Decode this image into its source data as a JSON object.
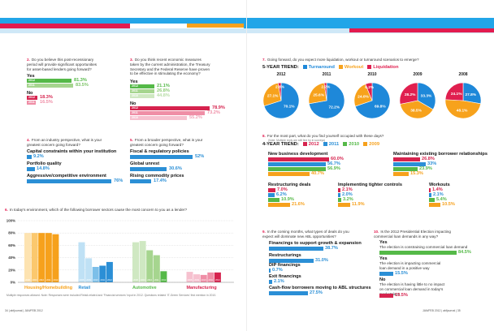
{
  "colors": {
    "green": "#55b948",
    "green_light": "#a6d58f",
    "green_pale": "#cfe8c2",
    "red": "#d6234e",
    "red_light": "#ef8ea6",
    "red_pale": "#f6c1cf",
    "blue": "#2b8fd6",
    "blue_light": "#7cbfe9",
    "blue_pale": "#bfe1f5",
    "orange": "#f6a11c",
    "orange_light": "#fbc86e",
    "orange_pale": "#fde3b1",
    "pie_blue": "#1e88d9",
    "pie_orange": "#f7a21c",
    "pie_red": "#e01f4f"
  },
  "q2": {
    "num": "2.",
    "text": "Do you believe this post-recessionary period will provide significant opportunities for asset-based lenders going forward?",
    "yes_label": "Yes",
    "no_label": "No",
    "yes": [
      {
        "year": "2012",
        "pct": "81.3%"
      },
      {
        "year": "2011",
        "pct": "83.5%"
      }
    ],
    "no": [
      {
        "year": "2012",
        "pct": "18.3%"
      },
      {
        "year": "2011",
        "pct": "16.5%"
      }
    ]
  },
  "q3": {
    "num": "3.",
    "text": "Do you think recent economic measures taken by the current administration, the Treasury Secretary and the Federal Reserve have proven to be effective in stimulating the economy?",
    "yes_label": "Yes",
    "no_label": "No",
    "yes": [
      {
        "year": "2012",
        "pct": "21.1%"
      },
      {
        "year": "2011",
        "pct": "26.8%"
      },
      {
        "year": "2010",
        "pct": "44.8%"
      }
    ],
    "no": [
      {
        "year": "2012",
        "pct": "78.9%"
      },
      {
        "year": "2011",
        "pct": "73.2%"
      },
      {
        "year": "2010",
        "pct": "55.2%"
      }
    ]
  },
  "q4": {
    "num": "4.",
    "text": "From an industry perspective, what is your greatest concern going forward?",
    "items": [
      {
        "label": "Capital constraints within your institution",
        "pct": "9.2%"
      },
      {
        "label": "Portfolio quality",
        "pct": "14.8%"
      },
      {
        "label": "Aggressive/competitive environment",
        "pct": "76%"
      }
    ]
  },
  "q5": {
    "num": "5.",
    "text": "From a broader perspective, what is your greatest concern going forward?",
    "items": [
      {
        "label": "Fiscal & regulatory policies",
        "pct": "52%"
      },
      {
        "label": "Global unrest",
        "pct": "30.6%"
      },
      {
        "label": "Rising commodity prices",
        "pct": "17.4%"
      }
    ]
  },
  "q6": {
    "num": "6.",
    "text": "In today's environment, which of the following borrower sectors cause the most concern to you as a lender?",
    "footnote": "Multiple responses allowed. Note: Responses were included Retail-related and 'Financial services' input in 2012. Questions related 'IT-Green Services' first mention in 2010.",
    "year_ticks": [
      "2008",
      "2009",
      "2010",
      "2011",
      "2012"
    ]
  },
  "q7": {
    "num": "7.",
    "text": "Going forward, do you expect more liquidation, workout or turnaround scenarios to emerge?",
    "trend_title": "5-YEAR TREND:",
    "legend": [
      "Turnaround",
      "Workout",
      "Liquidation"
    ]
  },
  "q8": {
    "num": "8.",
    "text": "For the most part, what do you find yourself occupied with these days?",
    "subtext": "(Note: Multiple reply are still fine by in surveys)",
    "trend_title": "4-YEAR TREND:",
    "legend": [
      "2012",
      "2011",
      "2010",
      "2009"
    ],
    "groups": [
      {
        "title": "New business development",
        "pcts": [
          "60.0%",
          "56.7%",
          "56.9%",
          "40.7%"
        ]
      },
      {
        "title": "Maintaining existing borrower relationships",
        "pcts": [
          "26.8%",
          "33%",
          "23.9%",
          "15.3%"
        ]
      },
      {
        "title": "Restructuring deals",
        "pcts": [
          "7.0%",
          "6.2%",
          "10.9%",
          "21.6%"
        ]
      },
      {
        "title": "Implementing tighter controls",
        "pcts": [
          "2.1%",
          "2.0%",
          "3.2%",
          "11.9%"
        ]
      },
      {
        "title": "Workouts",
        "pcts": [
          "1.4%",
          "2.1%",
          "5.4%",
          "10.5%"
        ]
      }
    ]
  },
  "q9": {
    "num": "9.",
    "text": "In the coming months, what types of deals do you expect will dominate new ABL opportunities?",
    "items": [
      {
        "label": "Financings to support growth & expansion",
        "pct": "38.7%"
      },
      {
        "label": "Restructurings",
        "pct": "31.0%"
      },
      {
        "label": "DIP financings",
        "pct": "0.7%"
      },
      {
        "label": "Exit financings",
        "pct": "2.1%"
      },
      {
        "label": "Cash-flow borrowers moving to ABL structures",
        "pct": "27.5%"
      }
    ]
  },
  "q10": {
    "num": "10.",
    "text": "Is the 2012 Presidential Election impacting commercial loan demands in any way?",
    "items": [
      {
        "label": "Yes",
        "sub": "The election is constraining commercial loan demand",
        "pct": "84.5%"
      },
      {
        "label": "Yes",
        "sub": "The election is impacting commercial loan demand in a positive way",
        "pct": "15.5%"
      },
      {
        "label": "No",
        "sub": "The election is having little to no impact on commercial loan demand in today's marketplace",
        "pct": "15.5%"
      }
    ]
  },
  "footer": {
    "left": "34 | abfjournal | JAN/FEB 2012",
    "right": "JAN/FEB 2012 | abfjournal | 35"
  },
  "chart_data": [
    {
      "type": "bar",
      "title": "",
      "categories": [
        "Housing/Homebuilding",
        "Retail",
        "Automotive",
        "Manufacturing"
      ],
      "series": [
        {
          "name": "2008",
          "values": [
            80,
            65,
            65,
            17
          ]
        },
        {
          "name": "2009",
          "values": [
            80,
            39,
            67,
            13
          ]
        },
        {
          "name": "2010",
          "values": [
            80,
            25,
            52,
            12
          ]
        },
        {
          "name": "2011",
          "values": [
            80,
            27,
            44,
            16
          ]
        },
        {
          "name": "2012",
          "values": [
            78,
            33,
            18,
            16
          ]
        }
      ],
      "ylim": [
        0,
        100
      ],
      "yticks": [
        "100%",
        "80%",
        "60%",
        "40%",
        "20%",
        "0%"
      ],
      "grid": true
    },
    {
      "type": "pie",
      "labels": [
        "Turnaround",
        "Workout",
        "Liquidation"
      ],
      "pies": [
        {
          "year": "2012",
          "values": [
            70.1,
            27.1,
            2.8
          ]
        },
        {
          "year": "2011",
          "values": [
            72.2,
            25.6,
            2.2
          ]
        },
        {
          "year": "2010",
          "values": [
            69.8,
            24.0,
            6.2
          ]
        },
        {
          "year": "2009",
          "values": [
            33.3,
            38.5,
            28.2
          ]
        },
        {
          "year": "2008",
          "values": [
            27.8,
            48.1,
            24.1
          ]
        }
      ]
    }
  ]
}
